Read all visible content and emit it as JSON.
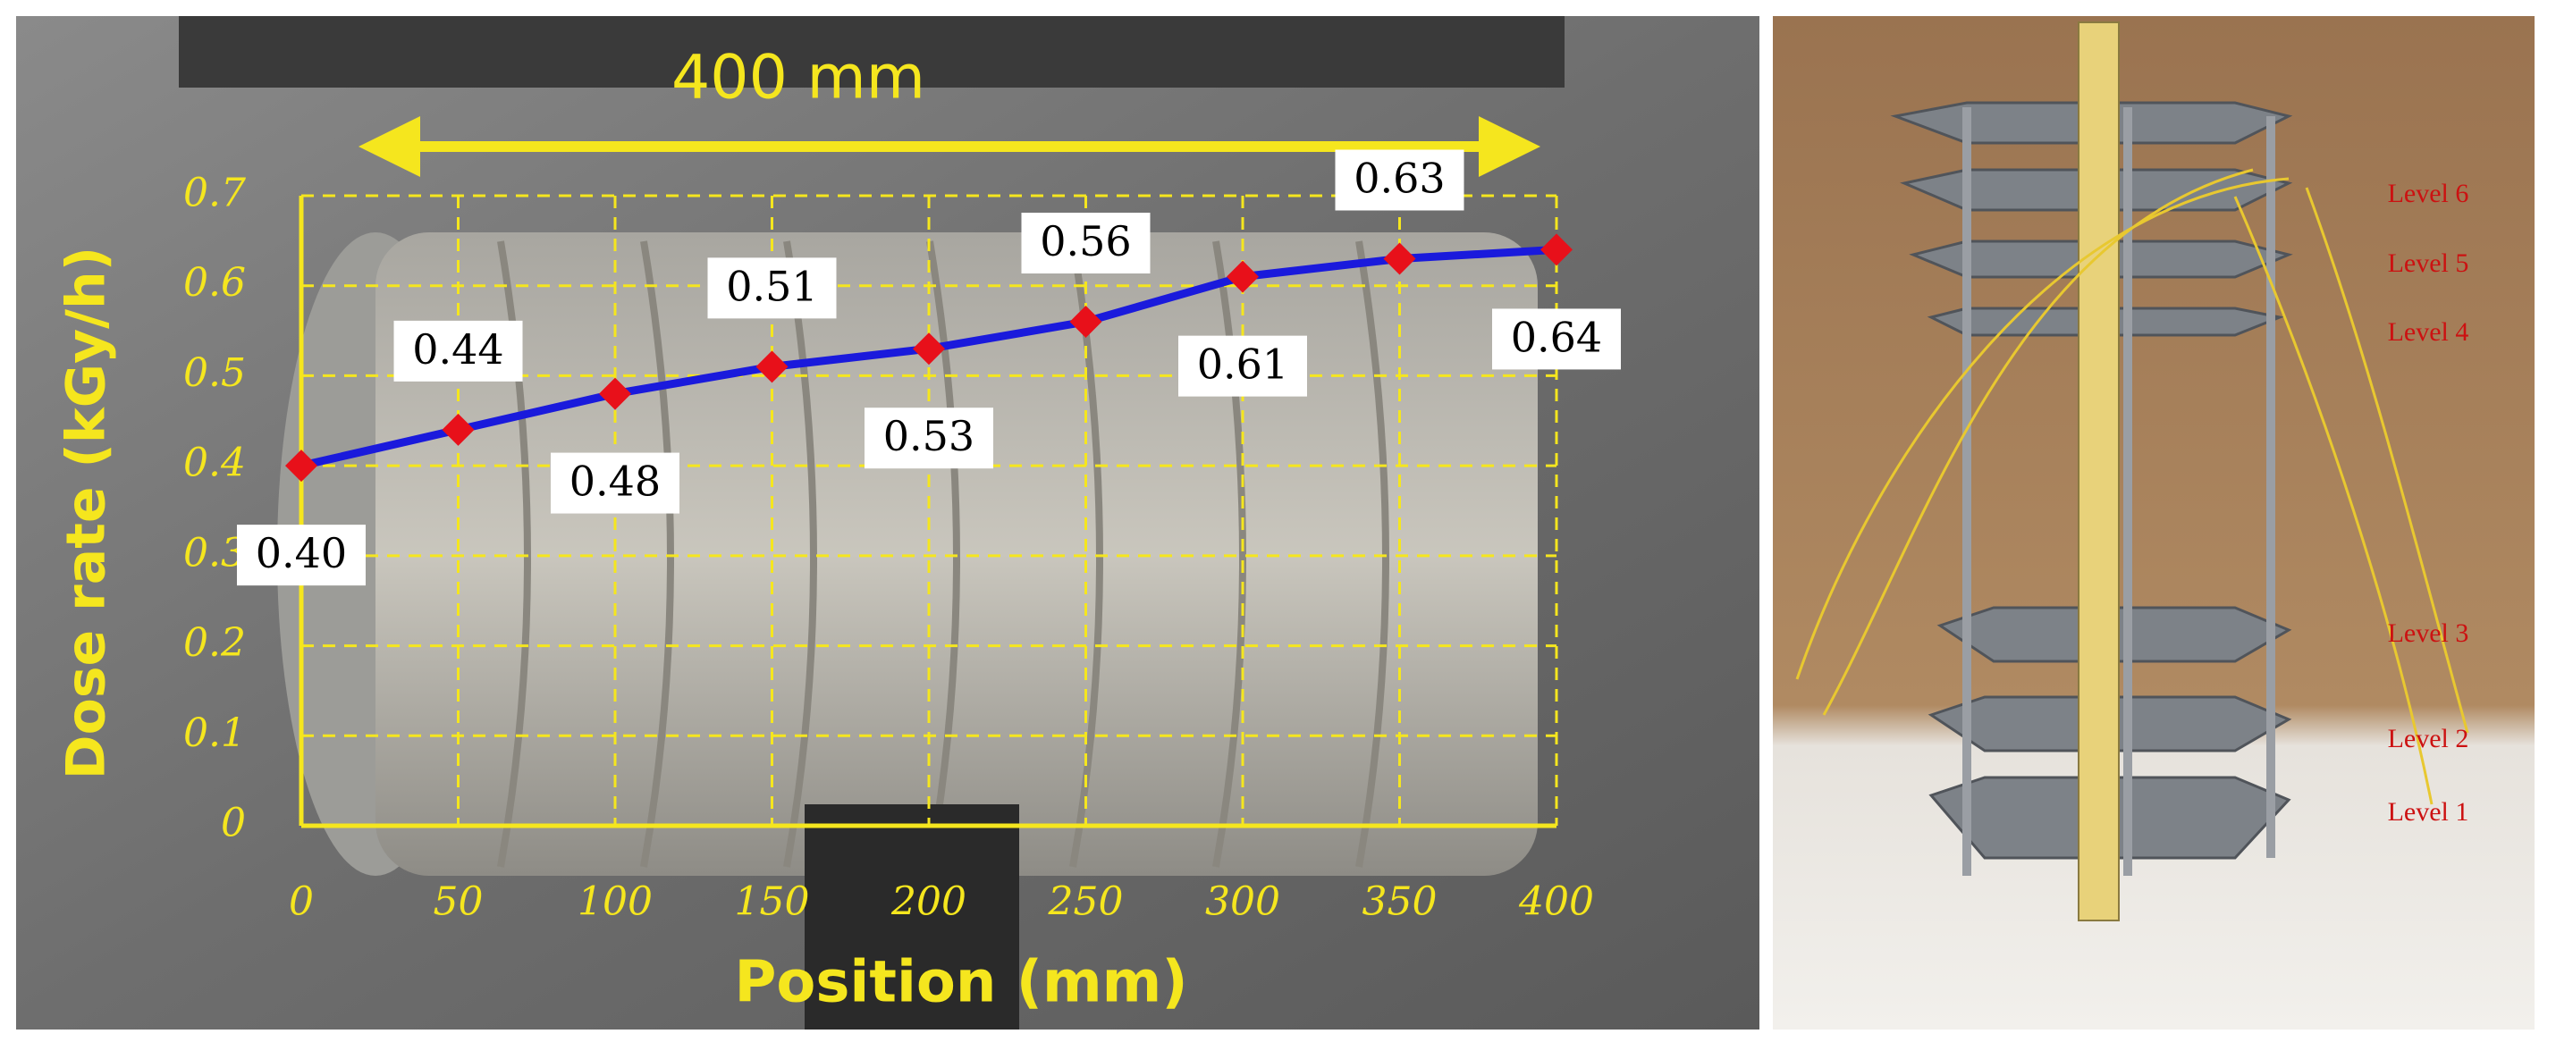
{
  "chart_data": {
    "type": "line",
    "title": "400 mm",
    "x_label": "Position (mm)",
    "y_label": "Dose rate (kGy/h)",
    "x": [
      0,
      50,
      100,
      150,
      200,
      250,
      300,
      350,
      400
    ],
    "series": [
      {
        "color": "#1a1adc",
        "marker_color": "#e8101a",
        "values": [
          0.4,
          0.44,
          0.48,
          0.51,
          0.53,
          0.56,
          0.61,
          0.63,
          0.64
        ],
        "value_labels": [
          "0.40",
          "0.44",
          "0.48",
          "0.51",
          "0.53",
          "0.56",
          "0.61",
          "0.63",
          "0.64"
        ]
      }
    ],
    "xlim": [
      0,
      400
    ],
    "xticks": [
      0,
      50,
      100,
      150,
      200,
      250,
      300,
      350,
      400
    ],
    "ylim": [
      0,
      0.7
    ],
    "yticks": [
      0,
      0.1,
      0.2,
      0.3,
      0.4,
      0.5,
      0.6,
      0.7
    ],
    "grid": true
  },
  "photo_labels": [
    "Level 6",
    "Level 5",
    "Level 4",
    "Level 3",
    "Level 2",
    "Level 1"
  ]
}
